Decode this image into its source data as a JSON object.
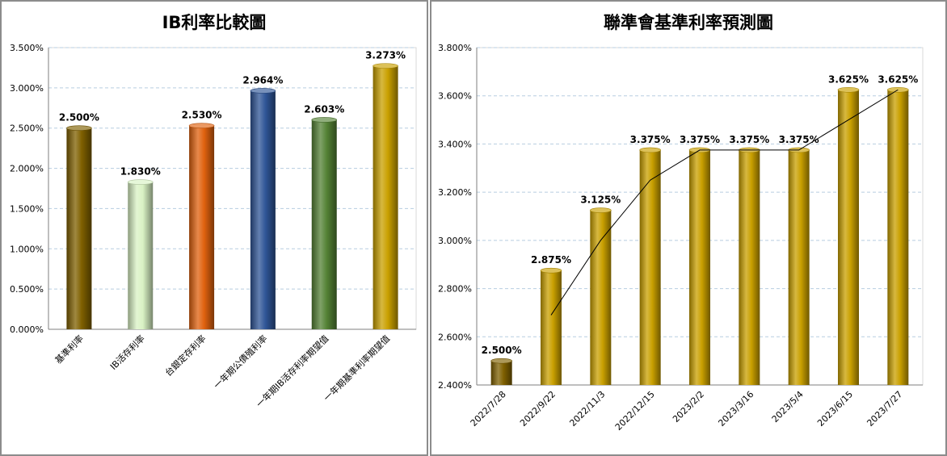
{
  "chart_data": [
    {
      "type": "bar",
      "title": "IB利率比較圖",
      "categories": [
        "基準利率",
        "IB活存利率",
        "台銀定存利率",
        "一年期公債殖利率",
        "一年期IB活存利率期望值",
        "一年期基準利率期望值"
      ],
      "values": [
        2.5,
        1.83,
        2.53,
        2.964,
        2.603,
        3.273
      ],
      "data_labels": [
        "2.500%",
        "1.830%",
        "2.530%",
        "2.964%",
        "2.603%",
        "3.273%"
      ],
      "colors": [
        "#7f6000",
        "#d9f2c4",
        "#e0620f",
        "#2f5597",
        "#548235",
        "#c9a000"
      ],
      "ylim": [
        0,
        3.5
      ],
      "yticks": [
        "0.000%",
        "0.500%",
        "1.000%",
        "1.500%",
        "2.000%",
        "2.500%",
        "3.000%",
        "3.500%"
      ],
      "ytick_values": [
        0,
        0.5,
        1.0,
        1.5,
        2.0,
        2.5,
        3.0,
        3.5
      ],
      "grid": true,
      "legend": "none"
    },
    {
      "type": "bar",
      "title": "聯準會基準利率預測圖",
      "categories": [
        "2022/7/28",
        "2022/9/22",
        "2022/11/3",
        "2022/12/15",
        "2023/2/2",
        "2023/3/16",
        "2023/5/4",
        "2023/6/15",
        "2023/7/27"
      ],
      "values": [
        2.5,
        2.875,
        3.125,
        3.375,
        3.375,
        3.375,
        3.375,
        3.625,
        3.625
      ],
      "data_labels": [
        "2.500%",
        "2.875%",
        "3.125%",
        "3.375%",
        "3.375%",
        "3.375%",
        "3.375%",
        "3.625%",
        "3.625%"
      ],
      "colors": [
        "#7f6000",
        "#c9a000",
        "#c9a000",
        "#c9a000",
        "#c9a000",
        "#c9a000",
        "#c9a000",
        "#c9a000",
        "#c9a000"
      ],
      "trendline": [
        2.69,
        3.0,
        3.25,
        3.375,
        3.375,
        3.375,
        3.5,
        3.625
      ],
      "ylim": [
        2.4,
        3.8
      ],
      "yticks": [
        "2.400%",
        "2.600%",
        "2.800%",
        "3.000%",
        "3.200%",
        "3.400%",
        "3.600%",
        "3.800%"
      ],
      "ytick_values": [
        2.4,
        2.6,
        2.8,
        3.0,
        3.2,
        3.4,
        3.6,
        3.8
      ],
      "grid": true,
      "legend": "none"
    }
  ]
}
